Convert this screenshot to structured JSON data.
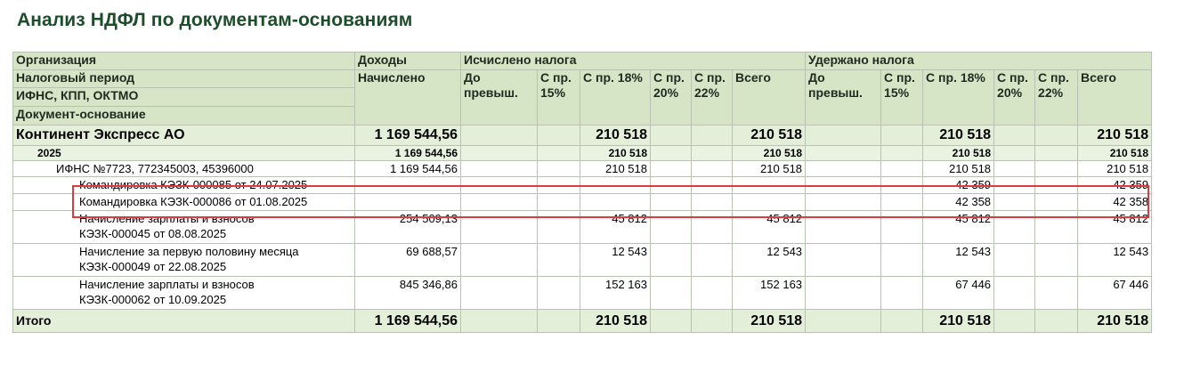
{
  "title": "Анализ НДФЛ по документам-основаниям",
  "headers": {
    "org": "Организация",
    "period": "Налоговый период",
    "ifns": "ИФНС, КПП, ОКТМО",
    "doc": "Документ-основание",
    "income": "Доходы",
    "accrued_label": "Начислено",
    "calc_group": "Исчислено налога",
    "withheld_group": "Удержано налога",
    "sub": [
      "До превыш.",
      "С пр. 15%",
      "С пр. 18%",
      "С пр. 20%",
      "С пр. 22%",
      "Всего"
    ]
  },
  "rows": [
    {
      "kind": "org",
      "label": "Континент Экспресс АО",
      "income": "1 169 544,56",
      "calc18": "210 518",
      "calcTotal": "210 518",
      "with18": "210 518",
      "withTotal": "210 518"
    },
    {
      "kind": "yr",
      "label": "2025",
      "income": "1 169 544,56",
      "calc18": "210 518",
      "calcTotal": "210 518",
      "with18": "210 518",
      "withTotal": "210 518"
    },
    {
      "kind": "ifns",
      "label": "ИФНС №7723, 772345003, 45396000",
      "income": "1 169 544,56",
      "calc18": "210 518",
      "calcTotal": "210 518",
      "with18": "210 518",
      "withTotal": "210 518"
    },
    {
      "kind": "doc",
      "label": "Командировка КЭЗК-000085 от 24.07.2025",
      "income": "",
      "calc18": "",
      "calcTotal": "",
      "with18": "42 359",
      "withTotal": "42 359"
    },
    {
      "kind": "doc",
      "label": "Командировка КЭЗК-000086 от 01.08.2025",
      "income": "",
      "calc18": "",
      "calcTotal": "",
      "with18": "42 358",
      "withTotal": "42 358"
    },
    {
      "kind": "doc2",
      "label1": "Начисление зарплаты и взносов",
      "label2": "КЭЗК-000045 от 08.08.2025",
      "income": "254 509,13",
      "calc18": "45 812",
      "calcTotal": "45 812",
      "with18": "45 812",
      "withTotal": "45 812"
    },
    {
      "kind": "doc2",
      "label1": "Начисление за первую половину месяца",
      "label2": "КЭЗК-000049 от 22.08.2025",
      "income": "69 688,57",
      "calc18": "12 543",
      "calcTotal": "12 543",
      "with18": "12 543",
      "withTotal": "12 543"
    },
    {
      "kind": "doc2",
      "label1": "Начисление зарплаты и взносов",
      "label2": "КЭЗК-000062 от 10.09.2025",
      "income": "845 346,86",
      "calc18": "152 163",
      "calcTotal": "152 163",
      "with18": "67 446",
      "withTotal": "67 446"
    }
  ],
  "total": {
    "label": "Итого",
    "income": "1 169 544,56",
    "calc18": "210 518",
    "calcTotal": "210 518",
    "with18": "210 518",
    "withTotal": "210 518"
  },
  "highlight_color": "#e0393e"
}
